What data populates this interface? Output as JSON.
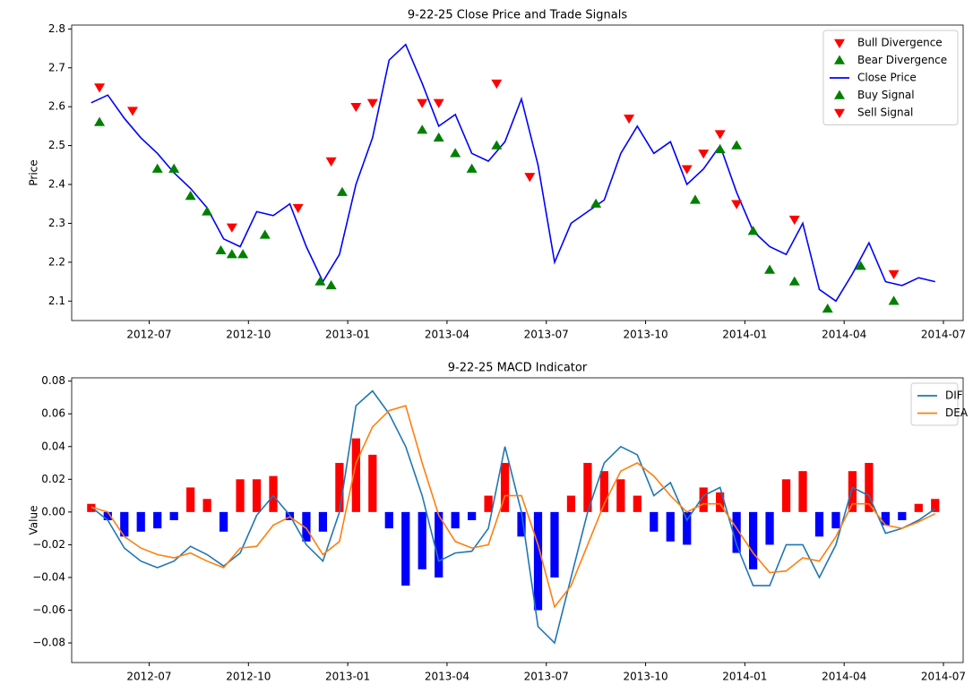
{
  "chart_data": [
    {
      "type": "line",
      "title": "9-22-25 Close Price and Trade Signals",
      "ylabel": "Price",
      "xlim": [
        "2012-05",
        "2014-07"
      ],
      "xticks": [
        "2012-07",
        "2012-10",
        "2013-01",
        "2013-04",
        "2013-07",
        "2013-10",
        "2014-01",
        "2014-04",
        "2014-07"
      ],
      "ylim": [
        2.05,
        2.81
      ],
      "yticks": [
        2.1,
        2.2,
        2.3,
        2.4,
        2.5,
        2.6,
        2.7,
        2.8
      ],
      "legend": "upper right",
      "series": [
        {
          "name": "Bull Divergence",
          "color": "red",
          "marker": "triangle-down",
          "x": [],
          "values": []
        },
        {
          "name": "Bear Divergence",
          "color": "green",
          "marker": "triangle-up",
          "x": [],
          "values": []
        },
        {
          "name": "Close Price",
          "color": "blue",
          "x": [
            "2012-05",
            "2012-05",
            "2012-06",
            "2012-06",
            "2012-07",
            "2012-07",
            "2012-08",
            "2012-08",
            "2012-09",
            "2012-09",
            "2012-10",
            "2012-10",
            "2012-11",
            "2012-11",
            "2012-12",
            "2012-12",
            "2013-01",
            "2013-01",
            "2013-02",
            "2013-02",
            "2013-03",
            "2013-03",
            "2013-04",
            "2013-04",
            "2013-05",
            "2013-05",
            "2013-06",
            "2013-06",
            "2013-07",
            "2013-07",
            "2013-08",
            "2013-08",
            "2013-09",
            "2013-09",
            "2013-10",
            "2013-10",
            "2013-11",
            "2013-11",
            "2013-12",
            "2013-12",
            "2014-01",
            "2014-01",
            "2014-02",
            "2014-02",
            "2014-03",
            "2014-03",
            "2014-04",
            "2014-04",
            "2014-05",
            "2014-05",
            "2014-06",
            "2014-06"
          ],
          "values": [
            2.61,
            2.63,
            2.57,
            2.52,
            2.48,
            2.43,
            2.39,
            2.34,
            2.26,
            2.24,
            2.33,
            2.32,
            2.35,
            2.24,
            2.15,
            2.22,
            2.4,
            2.52,
            2.72,
            2.76,
            2.66,
            2.55,
            2.58,
            2.48,
            2.46,
            2.51,
            2.62,
            2.45,
            2.2,
            2.3,
            2.33,
            2.36,
            2.48,
            2.55,
            2.48,
            2.51,
            2.4,
            2.44,
            2.5,
            2.38,
            2.28,
            2.24,
            2.22,
            2.3,
            2.13,
            2.1,
            2.17,
            2.25,
            2.15,
            2.14,
            2.16,
            2.15
          ]
        },
        {
          "name": "Buy Signal",
          "color": "green",
          "marker": "triangle-up",
          "x": [
            "2012-05",
            "2012-07",
            "2012-07",
            "2012-08",
            "2012-08",
            "2012-09",
            "2012-09",
            "2012-09",
            "2012-10",
            "2012-12",
            "2012-12",
            "2012-12",
            "2013-03",
            "2013-03",
            "2013-04",
            "2013-04",
            "2013-05",
            "2013-08",
            "2013-11",
            "2013-12",
            "2013-12",
            "2014-01",
            "2014-01",
            "2014-02",
            "2014-03",
            "2014-04",
            "2014-05"
          ],
          "values": [
            2.56,
            2.44,
            2.44,
            2.37,
            2.33,
            2.23,
            2.22,
            2.22,
            2.27,
            2.15,
            2.14,
            2.38,
            2.54,
            2.52,
            2.48,
            2.44,
            2.5,
            2.35,
            2.36,
            2.49,
            2.5,
            2.28,
            2.18,
            2.15,
            2.08,
            2.19,
            2.1
          ]
        },
        {
          "name": "Sell Signal",
          "color": "red",
          "marker": "triangle-down",
          "x": [
            "2012-05",
            "2012-06",
            "2012-09",
            "2012-11",
            "2012-12",
            "2013-01",
            "2013-01",
            "2013-03",
            "2013-03",
            "2013-05",
            "2013-06",
            "2013-09",
            "2013-11",
            "2013-11",
            "2013-12",
            "2013-12",
            "2014-02",
            "2014-05"
          ],
          "values": [
            2.65,
            2.59,
            2.29,
            2.34,
            2.46,
            2.6,
            2.61,
            2.61,
            2.61,
            2.66,
            2.42,
            2.57,
            2.44,
            2.48,
            2.53,
            2.35,
            2.31,
            2.17
          ]
        }
      ]
    },
    {
      "type": "line",
      "title": "9-22-25 MACD Indicator",
      "ylabel": "Value",
      "xlim": [
        "2012-05",
        "2014-07"
      ],
      "xticks": [
        "2012-07",
        "2012-10",
        "2013-01",
        "2013-04",
        "2013-07",
        "2013-10",
        "2014-01",
        "2014-04",
        "2014-07"
      ],
      "ylim": [
        -0.092,
        0.082
      ],
      "yticks": [
        {
          "value": -0.08,
          "label": "−0.08"
        },
        {
          "value": -0.06,
          "label": "−0.06"
        },
        {
          "value": -0.04,
          "label": "−0.04"
        },
        {
          "value": -0.02,
          "label": "−0.02"
        },
        {
          "value": 0,
          "label": "0.00"
        },
        {
          "value": 0.02,
          "label": "0.02"
        },
        {
          "value": 0.04,
          "label": "0.04"
        },
        {
          "value": 0.06,
          "label": "0.06"
        },
        {
          "value": 0.08,
          "label": "0.08"
        }
      ],
      "legend": "upper right",
      "bars": {
        "positive_color": "red",
        "negative_color": "blue",
        "x": [
          "2012-05",
          "2012-05",
          "2012-06",
          "2012-06",
          "2012-07",
          "2012-07",
          "2012-08",
          "2012-08",
          "2012-09",
          "2012-09",
          "2012-10",
          "2012-10",
          "2012-11",
          "2012-11",
          "2012-12",
          "2012-12",
          "2013-01",
          "2013-01",
          "2013-02",
          "2013-02",
          "2013-03",
          "2013-03",
          "2013-04",
          "2013-04",
          "2013-05",
          "2013-05",
          "2013-06",
          "2013-06",
          "2013-07",
          "2013-07",
          "2013-08",
          "2013-08",
          "2013-09",
          "2013-09",
          "2013-10",
          "2013-10",
          "2013-11",
          "2013-11",
          "2013-12",
          "2013-12",
          "2014-01",
          "2014-01",
          "2014-02",
          "2014-02",
          "2014-03",
          "2014-03",
          "2014-04",
          "2014-04",
          "2014-05",
          "2014-05",
          "2014-06",
          "2014-06"
        ],
        "values": [
          0.005,
          -0.005,
          -0.015,
          -0.012,
          -0.01,
          -0.005,
          0.015,
          0.008,
          -0.012,
          0.02,
          0.02,
          0.022,
          -0.005,
          -0.018,
          -0.012,
          0.03,
          0.045,
          0.035,
          -0.01,
          -0.045,
          -0.035,
          -0.04,
          -0.01,
          -0.005,
          0.01,
          0.03,
          -0.015,
          -0.06,
          -0.04,
          0.01,
          0.03,
          0.025,
          0.02,
          0.01,
          -0.012,
          -0.018,
          -0.02,
          0.015,
          0.012,
          -0.025,
          -0.035,
          -0.02,
          0.02,
          0.025,
          -0.015,
          -0.01,
          0.025,
          0.03,
          -0.008,
          -0.005,
          0.005,
          0.008
        ]
      },
      "series": [
        {
          "name": "DIF",
          "color": "#1f77b4",
          "x": [
            "2012-05",
            "2012-05",
            "2012-06",
            "2012-06",
            "2012-07",
            "2012-07",
            "2012-08",
            "2012-08",
            "2012-09",
            "2012-09",
            "2012-10",
            "2012-10",
            "2012-11",
            "2012-11",
            "2012-12",
            "2012-12",
            "2013-01",
            "2013-01",
            "2013-02",
            "2013-02",
            "2013-03",
            "2013-03",
            "2013-04",
            "2013-04",
            "2013-05",
            "2013-05",
            "2013-06",
            "2013-06",
            "2013-07",
            "2013-07",
            "2013-08",
            "2013-08",
            "2013-09",
            "2013-09",
            "2013-10",
            "2013-10",
            "2013-11",
            "2013-11",
            "2013-12",
            "2013-12",
            "2014-01",
            "2014-01",
            "2014-02",
            "2014-02",
            "2014-03",
            "2014-03",
            "2014-04",
            "2014-04",
            "2014-05",
            "2014-05",
            "2014-06",
            "2014-06"
          ],
          "values": [
            0.003,
            -0.005,
            -0.022,
            -0.03,
            -0.034,
            -0.03,
            -0.021,
            -0.026,
            -0.033,
            -0.025,
            -0.002,
            0.01,
            -0.002,
            -0.02,
            -0.03,
            0.0,
            0.065,
            0.074,
            0.06,
            0.04,
            0.01,
            -0.03,
            -0.025,
            -0.024,
            -0.01,
            0.04,
            0.0,
            -0.07,
            -0.08,
            -0.04,
            0.0,
            0.03,
            0.04,
            0.035,
            0.01,
            0.018,
            -0.005,
            0.01,
            0.015,
            -0.02,
            -0.045,
            -0.045,
            -0.02,
            -0.02,
            -0.04,
            -0.02,
            0.015,
            0.01,
            -0.013,
            -0.01,
            -0.005,
            0.002
          ]
        },
        {
          "name": "DEA",
          "color": "#ff7f0e",
          "x": [
            "2012-05",
            "2012-05",
            "2012-06",
            "2012-06",
            "2012-07",
            "2012-07",
            "2012-08",
            "2012-08",
            "2012-09",
            "2012-09",
            "2012-10",
            "2012-10",
            "2012-11",
            "2012-11",
            "2012-12",
            "2012-12",
            "2013-01",
            "2013-01",
            "2013-02",
            "2013-02",
            "2013-03",
            "2013-03",
            "2013-04",
            "2013-04",
            "2013-05",
            "2013-05",
            "2013-06",
            "2013-06",
            "2013-07",
            "2013-07",
            "2013-08",
            "2013-08",
            "2013-09",
            "2013-09",
            "2013-10",
            "2013-10",
            "2013-11",
            "2013-11",
            "2013-12",
            "2013-12",
            "2014-01",
            "2014-01",
            "2014-02",
            "2014-02",
            "2014-03",
            "2014-03",
            "2014-04",
            "2014-04",
            "2014-05",
            "2014-05",
            "2014-06",
            "2014-06"
          ],
          "values": [
            0.003,
            0.0,
            -0.015,
            -0.022,
            -0.026,
            -0.028,
            -0.025,
            -0.03,
            -0.034,
            -0.022,
            -0.021,
            -0.008,
            -0.003,
            -0.01,
            -0.026,
            -0.018,
            0.03,
            0.052,
            0.062,
            0.065,
            0.03,
            -0.002,
            -0.018,
            -0.022,
            -0.02,
            0.01,
            0.01,
            -0.02,
            -0.058,
            -0.045,
            -0.02,
            0.005,
            0.025,
            0.03,
            0.022,
            0.01,
            0.0,
            0.005,
            0.005,
            -0.01,
            -0.025,
            -0.037,
            -0.036,
            -0.028,
            -0.03,
            -0.015,
            0.005,
            0.005,
            -0.008,
            -0.01,
            -0.006,
            -0.001
          ]
        }
      ]
    }
  ]
}
